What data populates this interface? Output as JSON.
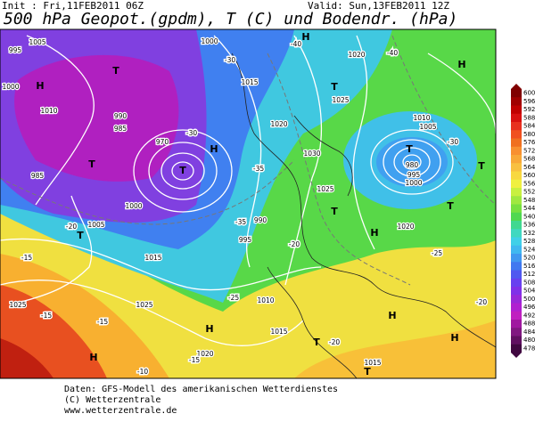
{
  "header": {
    "init": "Init : Fri,11FEB2011 06Z",
    "valid": "Valid: Sun,13FEB2011 12Z",
    "title": "500 hPa Geopot.(gpdm), T (C) und Bodendr. (hPa)"
  },
  "footer": {
    "line1": "Daten: GFS-Modell des amerikanischen Wetterdienstes",
    "line2": "(C) Wetterzentrale",
    "line3": "www.wetterzentrale.de"
  },
  "colorbar": {
    "ticks": [
      600,
      596,
      592,
      588,
      584,
      580,
      576,
      572,
      568,
      564,
      560,
      556,
      552,
      548,
      544,
      540,
      536,
      532,
      528,
      524,
      520,
      516,
      512,
      508,
      504,
      500,
      496,
      492,
      488,
      484,
      480,
      478
    ],
    "colors": [
      "#800000",
      "#a00000",
      "#c00000",
      "#d81010",
      "#e83020",
      "#f05020",
      "#f07020",
      "#f89030",
      "#f8a838",
      "#f8c040",
      "#f8d840",
      "#f0f040",
      "#c8f040",
      "#a0e840",
      "#78e040",
      "#50d850",
      "#40d890",
      "#40d8c0",
      "#40d0e8",
      "#40b8f0",
      "#4098f0",
      "#4078f0",
      "#5058f0",
      "#6840f0",
      "#8030e8",
      "#9828d8",
      "#b020d0",
      "#c020c0",
      "#a018a0",
      "#801880",
      "#601060",
      "#400840"
    ]
  },
  "map": {
    "centers": [
      "H",
      "T",
      "T",
      "T",
      "T",
      "H",
      "H",
      "T",
      "H",
      "T",
      "T",
      "T",
      "H",
      "T",
      "H",
      "H",
      "H",
      "T",
      "H",
      "T"
    ],
    "isobars": [
      "1005",
      "995",
      "1000",
      "1010",
      "990",
      "985",
      "985",
      "1000",
      "1015",
      "1020",
      "1030",
      "1025",
      "1020",
      "1025",
      "1010",
      "1005",
      "980",
      "995",
      "1000",
      "990",
      "995",
      "1005",
      "1015",
      "1025",
      "1025",
      "1020",
      "1015",
      "1010",
      "1015",
      "1020",
      "970",
      "1000"
    ],
    "temps": [
      "-30",
      "-35",
      "-40",
      "-40",
      "-30",
      "-35",
      "-20",
      "-25",
      "-15",
      "-15",
      "-20",
      "-15",
      "-30",
      "-25",
      "-20",
      "-15",
      "-10",
      "-20"
    ]
  }
}
